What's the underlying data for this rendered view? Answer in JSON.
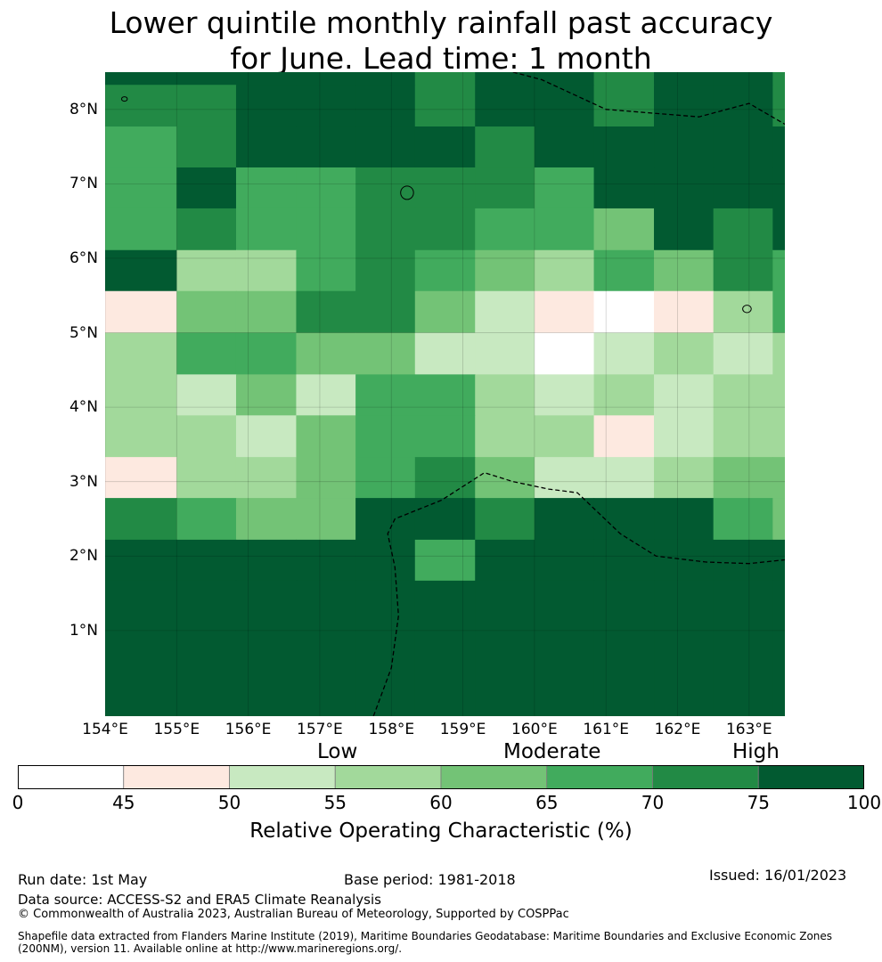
{
  "title_line1": "Lower quintile monthly rainfall past accuracy",
  "title_line2": "for June. Lead time: 1 month",
  "map": {
    "lon_min": 154.0,
    "lon_max": 163.5,
    "lat_min": -0.15,
    "lat_max": 8.5,
    "lat_labels": [
      {
        "lat": 8,
        "text": "8°N"
      },
      {
        "lat": 7,
        "text": "7°N"
      },
      {
        "lat": 6,
        "text": "6°N"
      },
      {
        "lat": 5,
        "text": "5°N"
      },
      {
        "lat": 4,
        "text": "4°N"
      },
      {
        "lat": 3,
        "text": "3°N"
      },
      {
        "lat": 2,
        "text": "2°N"
      },
      {
        "lat": 1,
        "text": "1°N"
      }
    ],
    "lon_labels": [
      {
        "lon": 154,
        "text": "154°E"
      },
      {
        "lon": 155,
        "text": "155°E"
      },
      {
        "lon": 156,
        "text": "156°E"
      },
      {
        "lon": 157,
        "text": "157°E"
      },
      {
        "lon": 158,
        "text": "158°E"
      },
      {
        "lon": 159,
        "text": "159°E"
      },
      {
        "lon": 160,
        "text": "160°E"
      },
      {
        "lon": 161,
        "text": "161°E"
      },
      {
        "lon": 162,
        "text": "162°E"
      },
      {
        "lon": 163,
        "text": "163°E"
      }
    ],
    "grid_lon_edges": [
      154.0,
      155.0,
      155.83,
      156.67,
      157.5,
      158.33,
      159.17,
      160.0,
      160.83,
      161.67,
      162.5,
      163.33,
      163.5
    ],
    "grid_lat_edges": [
      8.5,
      8.33,
      7.77,
      7.22,
      6.67,
      6.11,
      5.56,
      5.0,
      4.44,
      3.89,
      3.33,
      2.78,
      2.22,
      1.67,
      -0.15
    ],
    "roc_grid_bins": [
      [
        7,
        7,
        7,
        7,
        7,
        6,
        7,
        7,
        6,
        7,
        7,
        6,
        7
      ],
      [
        6,
        6,
        7,
        7,
        7,
        6,
        7,
        7,
        6,
        7,
        7,
        6,
        7
      ],
      [
        5,
        6,
        7,
        7,
        7,
        7,
        6,
        7,
        7,
        7,
        7,
        7,
        7
      ],
      [
        5,
        7,
        5,
        5,
        6,
        6,
        6,
        5,
        7,
        7,
        7,
        7,
        7
      ],
      [
        5,
        6,
        5,
        5,
        6,
        6,
        5,
        5,
        4,
        7,
        6,
        7,
        7
      ],
      [
        7,
        3,
        3,
        5,
        6,
        5,
        4,
        3,
        5,
        4,
        6,
        5,
        6
      ],
      [
        1,
        4,
        4,
        6,
        6,
        4,
        2,
        1,
        0,
        1,
        3,
        5,
        5
      ],
      [
        3,
        5,
        5,
        4,
        4,
        2,
        2,
        0,
        2,
        3,
        2,
        3,
        1
      ],
      [
        3,
        2,
        4,
        2,
        5,
        5,
        3,
        2,
        3,
        2,
        3,
        3,
        2
      ],
      [
        3,
        3,
        2,
        4,
        5,
        5,
        3,
        3,
        1,
        2,
        3,
        3,
        3
      ],
      [
        1,
        3,
        3,
        4,
        5,
        6,
        4,
        2,
        2,
        3,
        4,
        4,
        3
      ],
      [
        6,
        5,
        4,
        4,
        7,
        7,
        6,
        7,
        7,
        7,
        5,
        4,
        4
      ],
      [
        7,
        7,
        7,
        7,
        7,
        5,
        7,
        7,
        7,
        7,
        7,
        7,
        7
      ],
      [
        7,
        7,
        7,
        7,
        7,
        7,
        7,
        7,
        7,
        7,
        7,
        7,
        7
      ]
    ],
    "eez_boundaries": [
      [
        [
          159.7,
          8.5
        ],
        [
          160.1,
          8.4
        ],
        [
          161.0,
          8.0
        ],
        [
          162.3,
          7.9
        ],
        [
          163.0,
          8.08
        ],
        [
          163.5,
          7.8
        ]
      ],
      [
        [
          157.75,
          -0.15
        ],
        [
          158.0,
          0.5
        ],
        [
          158.1,
          1.2
        ],
        [
          158.05,
          1.85
        ],
        [
          157.95,
          2.3
        ],
        [
          158.05,
          2.5
        ],
        [
          158.7,
          2.75
        ],
        [
          159.3,
          3.12
        ],
        [
          159.7,
          3.0
        ],
        [
          160.2,
          2.9
        ],
        [
          160.6,
          2.85
        ],
        [
          161.2,
          2.3
        ],
        [
          161.7,
          2.0
        ],
        [
          162.4,
          1.92
        ],
        [
          163.0,
          1.9
        ],
        [
          163.5,
          1.95
        ]
      ]
    ],
    "islands": [
      {
        "lon": 158.22,
        "lat": 6.88,
        "r_lon": 0.09,
        "r_lat": 0.09
      },
      {
        "lon": 162.97,
        "lat": 5.32,
        "r_lon": 0.06,
        "r_lat": 0.05
      },
      {
        "lon": 154.27,
        "lat": 8.14,
        "r_lon": 0.04,
        "r_lat": 0.03
      }
    ]
  },
  "colorbar": {
    "bounds": [
      0,
      45,
      50,
      55,
      60,
      65,
      70,
      75,
      100
    ],
    "colors": [
      "#ffffff",
      "#fde9e0",
      "#c8e9c1",
      "#a2d99b",
      "#73c376",
      "#41ab5d",
      "#228a45",
      "#025a31"
    ],
    "tick_labels": [
      "0",
      "45",
      "50",
      "55",
      "60",
      "65",
      "70",
      "75",
      "100"
    ],
    "category_low": "Low",
    "category_moderate": "Moderate",
    "category_high": "High",
    "label": "Relative Operating Characteristic (%)"
  },
  "footer": {
    "run_date": "Run date: 1st May",
    "base_period": "Base period: 1981-2018",
    "issued": "Issued: 16/01/2023",
    "data_source": "Data source: ACCESS-S2 and ERA5 Climate Reanalysis",
    "copyright": "© Commonwealth of Australia 2023, Australian Bureau of Meteorology, Supported by COSPPac",
    "shapefile_line1": "Shapefile data extracted from Flanders Marine Institute (2019), Maritime Boundaries Geodatabase: Maritime Boundaries and Exclusive Economic Zones",
    "shapefile_line2": "(200NM), version 11. Available online at http://www.marineregions.org/."
  }
}
